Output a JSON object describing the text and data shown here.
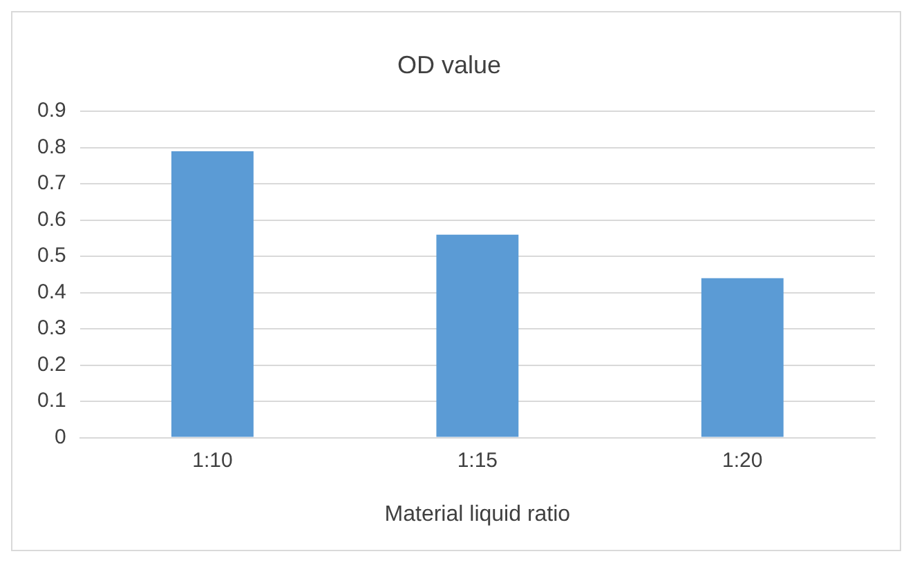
{
  "chart_data": {
    "type": "bar",
    "title": "OD value",
    "xlabel": "Material liquid ratio",
    "categories": [
      "1:10",
      "1:15",
      "1:20"
    ],
    "values": [
      0.79,
      0.56,
      0.44
    ],
    "color": "#5b9bd5",
    "ylim": [
      0,
      0.9
    ],
    "yticks": [
      0,
      0.1,
      0.2,
      0.3,
      0.4,
      0.5,
      0.6,
      0.7,
      0.8,
      0.9
    ],
    "grid": "y"
  }
}
